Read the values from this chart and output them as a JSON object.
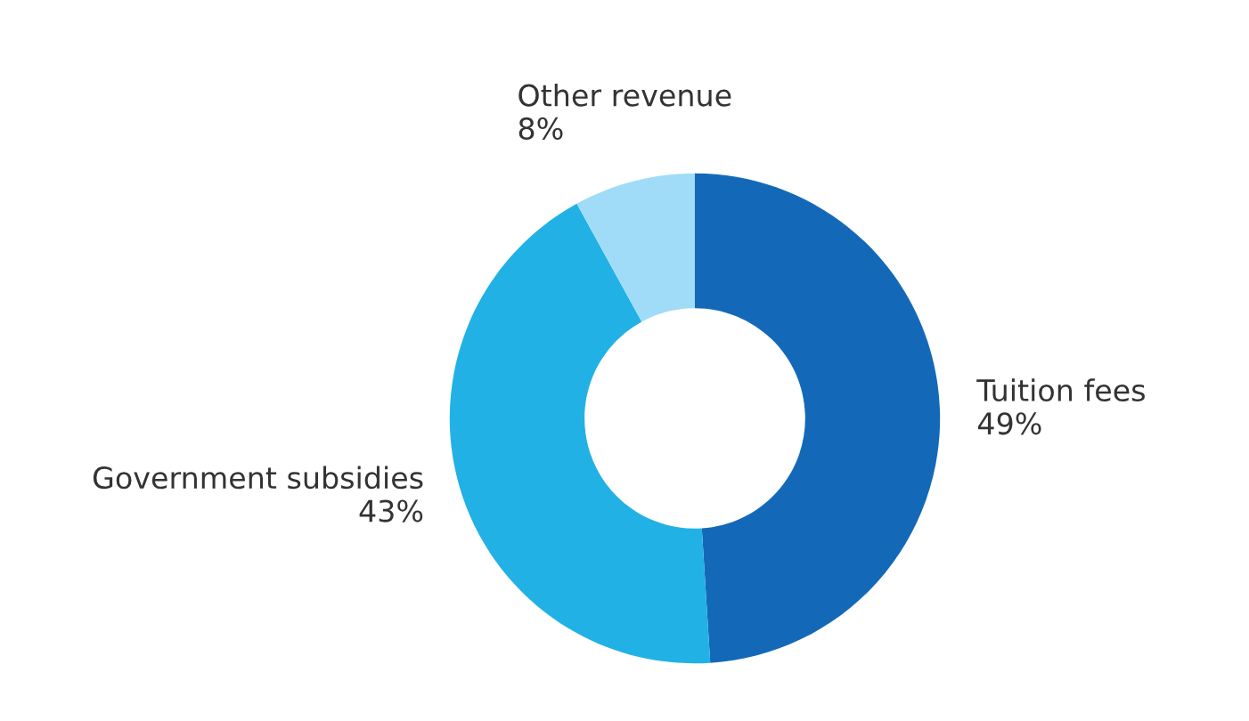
{
  "chart_data": {
    "type": "donut",
    "categories": [
      "Tuition fees",
      "Government subsidies",
      "Other revenue"
    ],
    "values": [
      49,
      43,
      8
    ],
    "colors": [
      "#1369b8",
      "#22b1e5",
      "#a0dcf7"
    ],
    "value_labels": [
      "49%",
      "43%",
      "8%"
    ],
    "legend": false
  }
}
